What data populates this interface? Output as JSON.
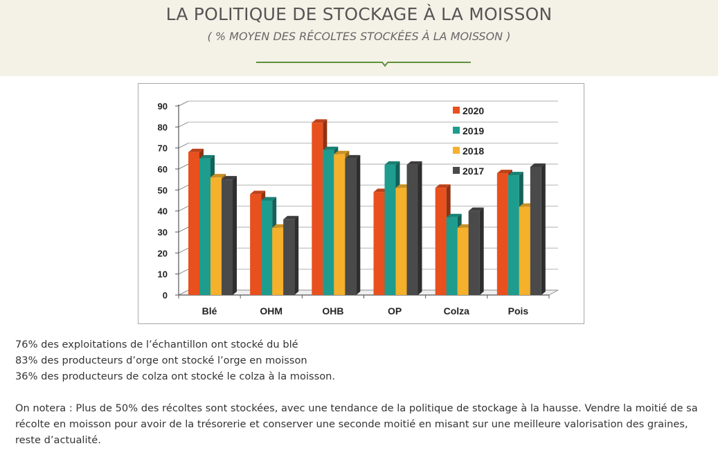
{
  "header": {
    "title": "LA POLITIQUE DE STOCKAGE À LA MOISSON",
    "subtitle": "( % MOYEN DES RÉCOLTES STOCKÉES À LA MOISSON )"
  },
  "colors": {
    "header_bg": "#f4f2e7",
    "divider": "#5e8f3a"
  },
  "chart_data": {
    "type": "bar",
    "style": "3d-clustered",
    "categories": [
      "Blé",
      "OHM",
      "OHB",
      "OP",
      "Colza",
      "Pois"
    ],
    "series": [
      {
        "name": "2020",
        "color": "#e8501e",
        "values": [
          68,
          48,
          82,
          49,
          51,
          58
        ]
      },
      {
        "name": "2019",
        "color": "#1e9c8e",
        "values": [
          65,
          45,
          69,
          62,
          37,
          57
        ]
      },
      {
        "name": "2018",
        "color": "#f5b02c",
        "values": [
          56,
          32,
          67,
          51,
          32,
          42
        ]
      },
      {
        "name": "2017",
        "color": "#4a4a4a",
        "values": [
          55,
          36,
          65,
          62,
          40,
          61
        ]
      }
    ],
    "yticks": [
      "0",
      "10",
      "20",
      "30",
      "40",
      "50",
      "60",
      "70",
      "80",
      "90"
    ],
    "ylim": [
      0,
      90
    ],
    "grid": true,
    "legend_position": "top-right"
  },
  "notes": [
    "76% des exploitations de l’échantillon ont stocké du blé",
    "83% des producteurs d’orge ont stocké l’orge en moisson",
    "36% des producteurs de colza ont stocké le colza à la moisson."
  ],
  "conclusion": "On notera : Plus de 50% des récoltes sont stockées, avec une tendance de la politique de stockage à la hausse. Vendre la moitié de sa récolte en moisson pour avoir de la trésorerie et conserver une seconde moitié en misant sur une meilleure valorisation des graines, reste d’actualité."
}
